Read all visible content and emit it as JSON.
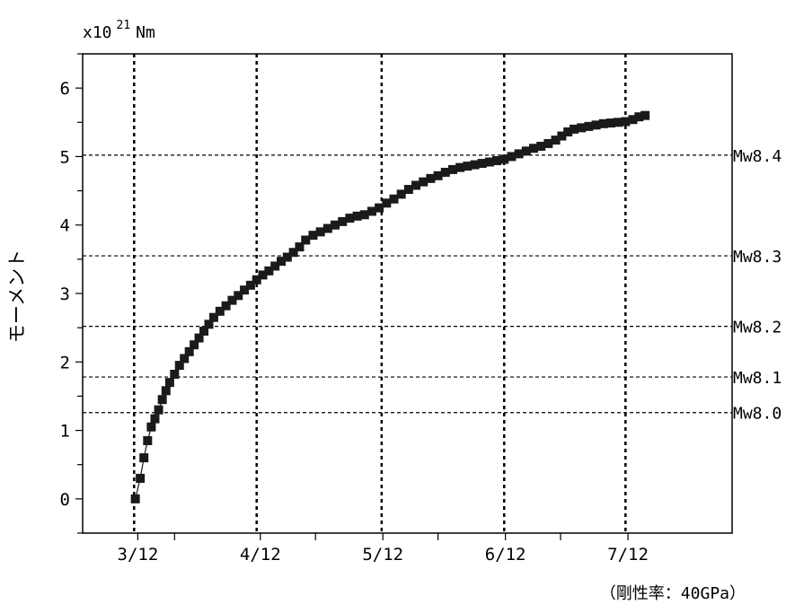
{
  "chart_data": {
    "type": "scatter",
    "ylabel": "モーメント",
    "unit_prefix": "x10",
    "unit_exponent": "21",
    "unit_suffix": "Nm",
    "note": "（剛性率：40GPa）",
    "ylim": [
      -0.5,
      6.5
    ],
    "yticks": [
      "0",
      "1",
      "2",
      "3",
      "4",
      "5",
      "6"
    ],
    "xlim": [
      2.55,
      7.85
    ],
    "x_ticks": [
      {
        "x": 3,
        "label": "3/12"
      },
      {
        "x": 4,
        "label": "4/12"
      },
      {
        "x": 5,
        "label": "5/12"
      },
      {
        "x": 6,
        "label": "6/12"
      },
      {
        "x": 7,
        "label": "7/12"
      }
    ],
    "vertical_reference_lines": [
      2.97,
      3.97,
      4.99,
      5.99,
      6.98
    ],
    "magnitude_lines": [
      {
        "label": "Mw8.4",
        "moment": 5.02
      },
      {
        "label": "Mw8.3",
        "moment": 3.55
      },
      {
        "label": "Mw8.2",
        "moment": 2.52
      },
      {
        "label": "Mw8.1",
        "moment": 1.78
      },
      {
        "label": "Mw8.0",
        "moment": 1.26
      }
    ],
    "series": [
      {
        "color": "#1a1a1a",
        "points": [
          [
            2.98,
            0.0
          ],
          [
            3.02,
            0.3
          ],
          [
            3.05,
            0.6
          ],
          [
            3.08,
            0.85
          ],
          [
            3.11,
            1.05
          ],
          [
            3.14,
            1.17
          ],
          [
            3.17,
            1.3
          ],
          [
            3.2,
            1.45
          ],
          [
            3.23,
            1.58
          ],
          [
            3.26,
            1.7
          ],
          [
            3.3,
            1.82
          ],
          [
            3.34,
            1.95
          ],
          [
            3.38,
            2.05
          ],
          [
            3.42,
            2.15
          ],
          [
            3.46,
            2.25
          ],
          [
            3.5,
            2.35
          ],
          [
            3.54,
            2.45
          ],
          [
            3.58,
            2.55
          ],
          [
            3.62,
            2.65
          ],
          [
            3.67,
            2.74
          ],
          [
            3.72,
            2.82
          ],
          [
            3.77,
            2.9
          ],
          [
            3.82,
            2.97
          ],
          [
            3.87,
            3.05
          ],
          [
            3.92,
            3.12
          ],
          [
            3.97,
            3.2
          ],
          [
            4.02,
            3.27
          ],
          [
            4.07,
            3.33
          ],
          [
            4.12,
            3.4
          ],
          [
            4.17,
            3.47
          ],
          [
            4.22,
            3.53
          ],
          [
            4.27,
            3.6
          ],
          [
            4.32,
            3.68
          ],
          [
            4.37,
            3.78
          ],
          [
            4.43,
            3.85
          ],
          [
            4.49,
            3.9
          ],
          [
            4.55,
            3.95
          ],
          [
            4.61,
            4.0
          ],
          [
            4.67,
            4.05
          ],
          [
            4.73,
            4.1
          ],
          [
            4.79,
            4.13
          ],
          [
            4.85,
            4.15
          ],
          [
            4.91,
            4.2
          ],
          [
            4.97,
            4.25
          ],
          [
            5.03,
            4.32
          ],
          [
            5.09,
            4.38
          ],
          [
            5.15,
            4.45
          ],
          [
            5.21,
            4.52
          ],
          [
            5.27,
            4.58
          ],
          [
            5.33,
            4.63
          ],
          [
            5.39,
            4.68
          ],
          [
            5.45,
            4.72
          ],
          [
            5.51,
            4.77
          ],
          [
            5.57,
            4.81
          ],
          [
            5.63,
            4.84
          ],
          [
            5.69,
            4.86
          ],
          [
            5.75,
            4.88
          ],
          [
            5.81,
            4.9
          ],
          [
            5.87,
            4.92
          ],
          [
            5.93,
            4.94
          ],
          [
            5.99,
            4.96
          ],
          [
            6.05,
            5.0
          ],
          [
            6.11,
            5.04
          ],
          [
            6.17,
            5.08
          ],
          [
            6.23,
            5.12
          ],
          [
            6.29,
            5.15
          ],
          [
            6.35,
            5.19
          ],
          [
            6.41,
            5.24
          ],
          [
            6.46,
            5.3
          ],
          [
            6.51,
            5.36
          ],
          [
            6.56,
            5.4
          ],
          [
            6.62,
            5.42
          ],
          [
            6.68,
            5.44
          ],
          [
            6.74,
            5.46
          ],
          [
            6.8,
            5.48
          ],
          [
            6.86,
            5.49
          ],
          [
            6.92,
            5.5
          ],
          [
            6.98,
            5.51
          ],
          [
            7.04,
            5.54
          ],
          [
            7.09,
            5.58
          ],
          [
            7.14,
            5.6
          ]
        ]
      }
    ]
  }
}
